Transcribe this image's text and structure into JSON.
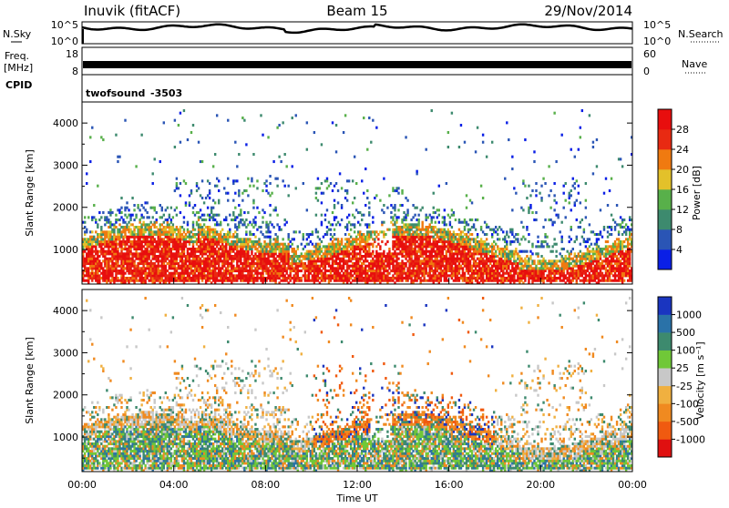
{
  "header": {
    "radar": "Inuvik (fitACF)",
    "beam": "Beam 15",
    "date": "29/Nov/2014"
  },
  "nsky_panel": {
    "label_left": "N.Sky",
    "label_right": "N.Search",
    "ticks_left": [
      "10^5",
      "10^0"
    ],
    "ticks_right": [
      "10^5",
      "10^0"
    ]
  },
  "freq_panel": {
    "label_left_1": "Freq.",
    "label_left_2": "[MHz]",
    "ticks_left": [
      "18",
      "8"
    ],
    "label_right": "Nave",
    "ticks_right": [
      "60",
      "0"
    ]
  },
  "cpid_panel": {
    "label": "CPID",
    "program": "twofsound",
    "id": "-3503"
  },
  "chart_data": [
    {
      "type": "heatmap",
      "name": "power",
      "ylabel": "Slant Range [km]",
      "ylim": [
        180,
        4500
      ],
      "yticks": [
        1000,
        2000,
        3000,
        4000
      ],
      "xlim": [
        0,
        24
      ],
      "colorbar_label": "Power [dB]",
      "colorbar_ticks": [
        "4",
        "8",
        "12",
        "16",
        "20",
        "24",
        "28"
      ],
      "colorbar_colors": [
        "#0a1fe6",
        "#2a55b5",
        "#3d8a6e",
        "#58b04a",
        "#e3c12a",
        "#f07a10",
        "#e82a12",
        "#e80e0e"
      ]
    },
    {
      "type": "heatmap",
      "name": "velocity",
      "ylabel": "Slant Range [km]",
      "ylim": [
        180,
        4500
      ],
      "yticks": [
        1000,
        2000,
        3000,
        4000
      ],
      "xlim": [
        0,
        24
      ],
      "xticks": [
        "00:00",
        "04:00",
        "08:00",
        "12:00",
        "16:00",
        "20:00",
        "00:00"
      ],
      "xlabel": "Time UT",
      "colorbar_label": "Velocity [m s⁻¹]",
      "colorbar_ticks": [
        "1000",
        "500",
        "100",
        "25",
        "-25",
        "-100",
        "-500",
        "-1000"
      ],
      "colorbar_colors": [
        "#1a35c0",
        "#2a72a8",
        "#3d8a6e",
        "#70c838",
        "#c8c8c8",
        "#f0b040",
        "#f08a20",
        "#f05a10",
        "#e01010"
      ]
    }
  ]
}
